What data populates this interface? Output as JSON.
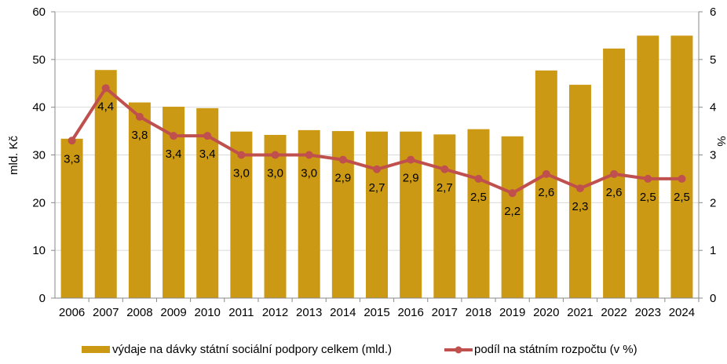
{
  "chart_data": {
    "type": "bar+line",
    "categories": [
      "2006",
      "2007",
      "2008",
      "2009",
      "2010",
      "2011",
      "2012",
      "2013",
      "2014",
      "2015",
      "2016",
      "2017",
      "2018",
      "2019",
      "2020",
      "2021",
      "2022",
      "2023",
      "2024"
    ],
    "series": [
      {
        "name": "výdaje na dávky státní sociální podpory celkem (mld.)",
        "type": "bar",
        "axis": "left",
        "color": "#CC9914",
        "values": [
          33.4,
          47.8,
          41.0,
          40.1,
          39.8,
          34.9,
          34.2,
          35.2,
          35.0,
          34.9,
          34.9,
          34.3,
          35.4,
          33.9,
          47.7,
          44.7,
          52.3,
          55.0,
          55.0
        ]
      },
      {
        "name": "podíl na státním rozpočtu (v %)",
        "type": "line",
        "axis": "right",
        "color": "#C0504D",
        "values": [
          3.3,
          4.4,
          3.8,
          3.4,
          3.4,
          3.0,
          3.0,
          3.0,
          2.9,
          2.7,
          2.9,
          2.7,
          2.5,
          2.2,
          2.6,
          2.3,
          2.6,
          2.5,
          2.5
        ],
        "labels": [
          "3,3",
          "4,4",
          "3,8",
          "3,4",
          "3,4",
          "3,0",
          "3,0",
          "3,0",
          "2,9",
          "2,7",
          "2,9",
          "2,7",
          "2,5",
          "2,2",
          "2,6",
          "2,3",
          "2,6",
          "2,5",
          "2,5"
        ]
      }
    ],
    "ylabel": "mld. Kč",
    "ylim": [
      0,
      60
    ],
    "yticks": [
      "0",
      "10",
      "20",
      "30",
      "40",
      "50",
      "60"
    ],
    "y2label": "%",
    "y2lim": [
      0,
      6
    ],
    "y2ticks": [
      "0",
      "1",
      "2",
      "3",
      "4",
      "5",
      "6"
    ],
    "grid": true,
    "legend": "bottom"
  }
}
